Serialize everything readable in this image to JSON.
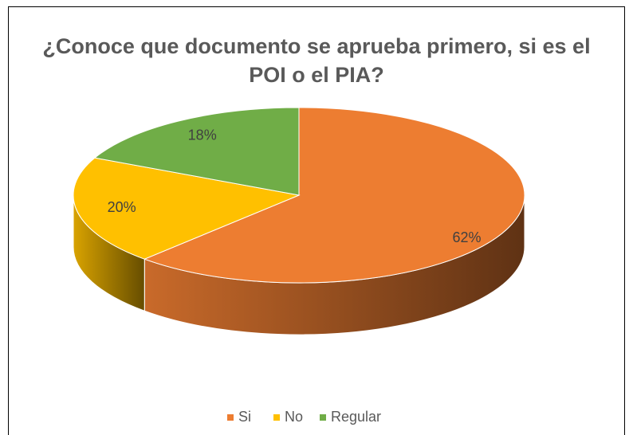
{
  "chart_data": {
    "type": "pie",
    "title": "¿Conoce que documento se aprueba primero, si es el POI o el PIA?",
    "categories": [
      "Si",
      "No",
      "Regular"
    ],
    "values": [
      62,
      20,
      18
    ],
    "value_labels": [
      "62%",
      "20%",
      "18%"
    ],
    "colors": [
      "#ed7d31",
      "#ffc000",
      "#70ad47"
    ],
    "legend": "bottom"
  }
}
